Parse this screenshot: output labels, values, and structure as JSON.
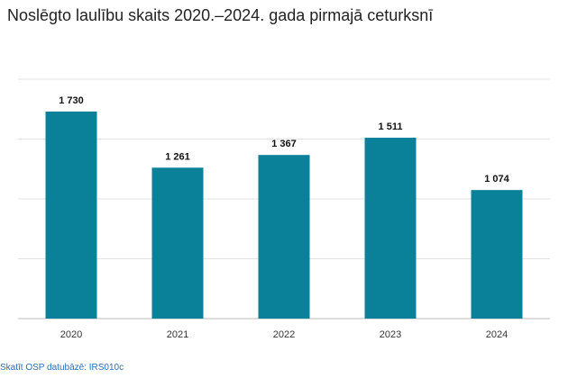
{
  "chart_data": {
    "type": "bar",
    "title": "Noslēgto laulību skaits 2020.–2024. gada pirmajā ceturksnī",
    "categories": [
      "2020",
      "2021",
      "2022",
      "2023",
      "2024"
    ],
    "values": [
      1730,
      1261,
      1367,
      1511,
      1074
    ],
    "value_labels": [
      "1 730",
      "1 261",
      "1 367",
      "1 511",
      "1 074"
    ],
    "xlabel": "",
    "ylabel": "",
    "ylim": [
      0,
      2000
    ],
    "grid": true,
    "legend": "none",
    "bar_color": "#0a8199"
  },
  "source_link": "Skatīt OSP datubāzē: IRS010c"
}
